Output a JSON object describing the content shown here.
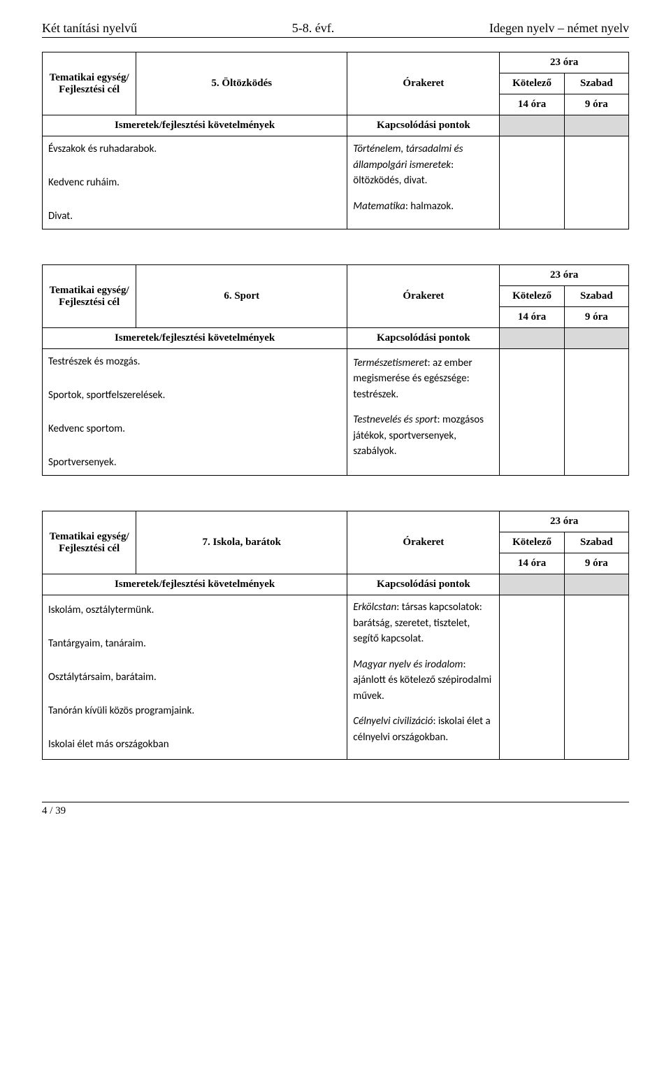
{
  "header": {
    "left": "Két tanítási nyelvű",
    "center": "5-8. évf.",
    "right": "Idegen nyelv – német nyelv"
  },
  "labels": {
    "tematikai": "Tematikai egység/ Fejlesztési cél",
    "orakeret": "Órakeret",
    "kotelezo": "Kötelező",
    "szabad": "Szabad",
    "ismeretek": "Ismeretek/fejlesztési követelmények",
    "kapcsolodasi": "Kapcsolódási pontok"
  },
  "units": [
    {
      "title": "5. Öltözködés",
      "total": "23 óra",
      "kotelezo": "14 óra",
      "szabad": "9 óra",
      "left": "Évszakok és ruhadarabok.\n\nKedvenc ruháim.\n\nDivat.",
      "right": [
        {
          "italic": "Történelem, társadalmi és állampolgári ismeretek",
          "rest": ": öltözködés, divat."
        },
        {
          "italic": "Matematika",
          "rest": ": halmazok."
        }
      ]
    },
    {
      "title": "6. Sport",
      "total": "23 óra",
      "kotelezo": "14 óra",
      "szabad": "9 óra",
      "left": "Testrészek és mozgás.\n\nSportok, sportfelszerelések.\n\nKedvenc sportom.\n\nSportversenyek.",
      "right": [
        {
          "italic": "Természetismeret",
          "rest": ": az ember megismerése és egészsége: testrészek."
        },
        {
          "italic": "Testnevelés és sport",
          "rest": ": mozgásos játékok, sportversenyek, szabályok."
        }
      ]
    },
    {
      "title": "7. Iskola, barátok",
      "total": "23 óra",
      "kotelezo": "14 óra",
      "szabad": "9 óra",
      "left": "Iskolám, osztálytermünk.\n\nTantárgyaim, tanáraim.\n\nOsztálytársaim, barátaim.\n\nTanórán kívüli közös programjaink.\n\nIskolai élet más országokban",
      "right": [
        {
          "italic": "Erkölcstan",
          "rest": ": társas kapcsolatok: barátság, szeretet, tisztelet, segítő kapcsolat."
        },
        {
          "italic": "Magyar nyelv és irodalom",
          "rest": ": ajánlott és kötelező szépirodalmi művek."
        },
        {
          "italic": "Célnyelvi civilizáció",
          "rest": ": iskolai élet a célnyelvi országokban."
        }
      ]
    }
  ],
  "footer": {
    "page": "4 / 39"
  }
}
